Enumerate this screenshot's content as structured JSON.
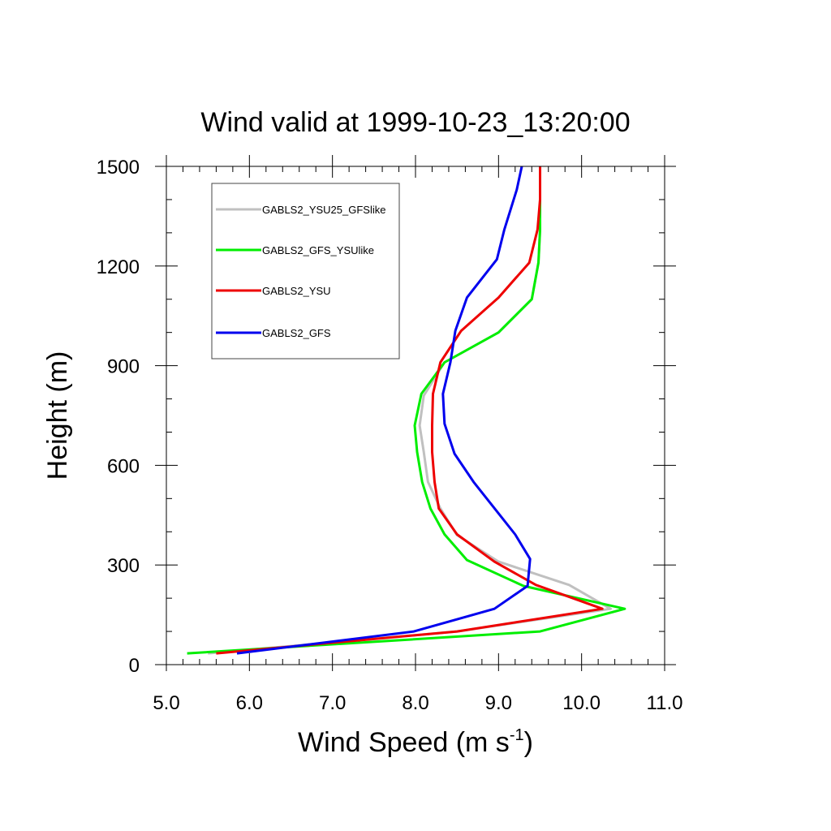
{
  "chart_data": {
    "type": "line",
    "title": "Wind valid at 1999-10-23_13:20:00",
    "xlabel": "Wind Speed (m s",
    "xlabel_sup": "-1",
    "xlabel_close": ")",
    "ylabel": "Height (m)",
    "xlim": [
      5.0,
      11.0
    ],
    "ylim": [
      0,
      1500
    ],
    "xticks": [
      "5.0",
      "6.0",
      "7.0",
      "8.0",
      "9.0",
      "10.0",
      "11.0"
    ],
    "xtick_values": [
      5,
      6,
      7,
      8,
      9,
      10,
      11
    ],
    "yticks": [
      "0",
      "300",
      "600",
      "900",
      "1200",
      "1500"
    ],
    "ytick_values": [
      0,
      300,
      600,
      900,
      1200,
      1500
    ],
    "grid": false,
    "legend_position": "top-left",
    "series": [
      {
        "name": "GABLS2_YSU25_GFSlike",
        "color": "#c0c0c0",
        "points": [
          [
            5.5,
            34
          ],
          [
            8.5,
            100
          ],
          [
            10.35,
            168
          ],
          [
            9.85,
            240
          ],
          [
            9.0,
            310
          ],
          [
            8.5,
            390
          ],
          [
            8.3,
            470
          ],
          [
            8.15,
            550
          ],
          [
            8.1,
            640
          ],
          [
            8.05,
            720
          ],
          [
            8.1,
            810
          ],
          [
            8.35,
            910
          ],
          [
            9.0,
            1000
          ],
          [
            9.4,
            1100
          ],
          [
            9.48,
            1210
          ],
          [
            9.5,
            1310
          ],
          [
            9.5,
            1400
          ],
          [
            9.5,
            1500
          ]
        ]
      },
      {
        "name": "GABLS2_GFS_YSUlike",
        "color": "#00ee00",
        "points": [
          [
            5.25,
            34
          ],
          [
            9.5,
            100
          ],
          [
            10.52,
            168
          ],
          [
            9.3,
            237
          ],
          [
            8.62,
            315
          ],
          [
            8.35,
            392
          ],
          [
            8.18,
            470
          ],
          [
            8.08,
            550
          ],
          [
            8.02,
            640
          ],
          [
            7.99,
            720
          ],
          [
            8.07,
            815
          ],
          [
            8.35,
            910
          ],
          [
            9.0,
            1000
          ],
          [
            9.4,
            1100
          ],
          [
            9.48,
            1210
          ],
          [
            9.5,
            1310
          ],
          [
            9.5,
            1400
          ],
          [
            9.5,
            1500
          ]
        ]
      },
      {
        "name": "GABLS2_YSU",
        "color": "#ee0000",
        "points": [
          [
            5.6,
            34
          ],
          [
            8.5,
            100
          ],
          [
            10.25,
            168
          ],
          [
            9.45,
            240
          ],
          [
            8.95,
            310
          ],
          [
            8.5,
            392
          ],
          [
            8.28,
            470
          ],
          [
            8.23,
            550
          ],
          [
            8.2,
            640
          ],
          [
            8.2,
            720
          ],
          [
            8.21,
            815
          ],
          [
            8.3,
            910
          ],
          [
            8.55,
            1005
          ],
          [
            9.0,
            1105
          ],
          [
            9.37,
            1210
          ],
          [
            9.47,
            1310
          ],
          [
            9.5,
            1400
          ],
          [
            9.5,
            1500
          ]
        ]
      },
      {
        "name": "GABLS2_GFS",
        "color": "#0000ee",
        "points": [
          [
            5.85,
            34
          ],
          [
            7.98,
            100
          ],
          [
            8.95,
            168
          ],
          [
            9.35,
            237
          ],
          [
            9.38,
            318
          ],
          [
            9.2,
            392
          ],
          [
            8.7,
            550
          ],
          [
            8.47,
            635
          ],
          [
            8.35,
            725
          ],
          [
            8.33,
            815
          ],
          [
            8.42,
            910
          ],
          [
            8.48,
            1005
          ],
          [
            8.62,
            1105
          ],
          [
            8.98,
            1220
          ],
          [
            9.07,
            1310
          ],
          [
            9.22,
            1430
          ],
          [
            9.28,
            1500
          ]
        ]
      }
    ]
  }
}
